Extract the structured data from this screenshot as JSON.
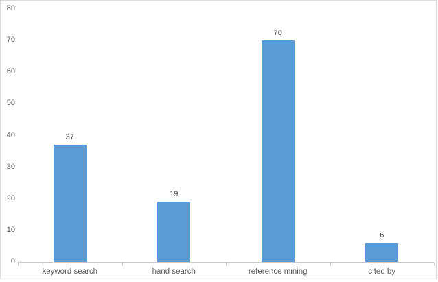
{
  "chart_data": {
    "type": "bar",
    "title": "",
    "categories": [
      "keyword search",
      "hand search",
      "reference mining",
      "cited by"
    ],
    "values": [
      37,
      19,
      70,
      6
    ],
    "data_labels": [
      "37",
      "19",
      "70",
      "6"
    ],
    "xlabel": "",
    "ylabel": "",
    "ylim": [
      0,
      80
    ],
    "y_ticks": [
      0,
      10,
      20,
      30,
      40,
      50,
      60,
      70,
      80
    ],
    "grid": false,
    "legend": "none",
    "bar_color": "#5b9bd5",
    "axis_line_color": "#c9c9c9",
    "frame_border_color": "#d9d9d9",
    "tick_label_color": "#595959",
    "data_label_color": "#404040",
    "background_color": "#ffffff"
  }
}
